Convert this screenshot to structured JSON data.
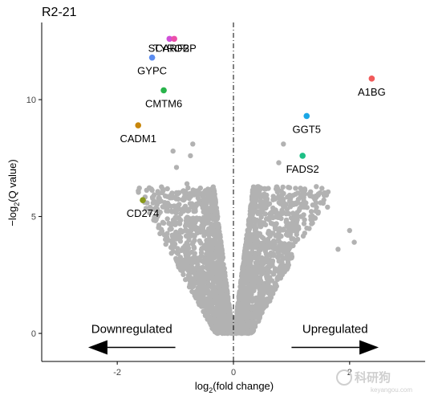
{
  "chart_data": {
    "type": "scatter",
    "title": "R2-21",
    "xlabel": "log2(fold change)",
    "xlabel_parts": {
      "prefix": "log",
      "sub": "2",
      "suffix": "(fold change)"
    },
    "ylabel": "−log2(Q value)",
    "ylabel_parts": {
      "prefix": "−log",
      "sub": "2",
      "suffix": "(Q value)"
    },
    "xlim": [
      -3.3,
      3.3
    ],
    "ylim": [
      -1.2,
      13.3
    ],
    "x_ticks": [
      {
        "value": -2,
        "label": "-2"
      },
      {
        "value": 0,
        "label": "0"
      },
      {
        "value": 2,
        "label": "2"
      }
    ],
    "y_ticks": [
      {
        "value": 0,
        "label": "0"
      },
      {
        "value": 5,
        "label": "5"
      },
      {
        "value": 10,
        "label": "10"
      }
    ],
    "grid": false,
    "vline": {
      "x": 0,
      "style": "dash-dot"
    },
    "background_color": "#b2b2b2",
    "highlighted_genes": [
      {
        "name": "A1BG",
        "x": 2.38,
        "y": 10.9,
        "color": "#f15a5a"
      },
      {
        "name": "GGT5",
        "x": 1.26,
        "y": 9.3,
        "color": "#1aa7e6"
      },
      {
        "name": "FADS2",
        "x": 1.19,
        "y": 7.6,
        "color": "#1dbf85"
      },
      {
        "name": "GYPC",
        "x": -1.4,
        "y": 11.8,
        "color": "#5b8cf0"
      },
      {
        "name": "CMTM6",
        "x": -1.2,
        "y": 10.4,
        "color": "#28b34a"
      },
      {
        "name": "CADM1",
        "x": -1.64,
        "y": 8.9,
        "color": "#c8860a"
      },
      {
        "name": "CD274",
        "x": -1.56,
        "y": 5.7,
        "color": "#8a9a1a"
      },
      {
        "name": "SCARF2",
        "x": -1.1,
        "y": 12.6,
        "color": "#d04fd8"
      },
      {
        "name": "TYROBP",
        "x": -1.02,
        "y": 12.6,
        "color": "#ec4fa9"
      }
    ],
    "background_outliers": [
      {
        "x": -1.04,
        "y": 7.8
      },
      {
        "x": -0.98,
        "y": 7.1
      },
      {
        "x": -0.7,
        "y": 8.1
      },
      {
        "x": -0.74,
        "y": 7.6
      },
      {
        "x": -0.8,
        "y": 6.4
      },
      {
        "x": 0.86,
        "y": 8.1
      },
      {
        "x": 0.78,
        "y": 7.3
      },
      {
        "x": 1.62,
        "y": 5.4
      },
      {
        "x": 2.0,
        "y": 4.4
      },
      {
        "x": 2.08,
        "y": 3.9
      },
      {
        "x": 1.8,
        "y": 3.6
      },
      {
        "x": -0.52,
        "y": 6.0
      },
      {
        "x": 0.6,
        "y": 6.2
      }
    ],
    "annotations": [
      {
        "text": "Downregulated",
        "arrow_from_x": -1.0,
        "arrow_to_x": -2.5,
        "y": -0.6
      },
      {
        "text": "Upregulated",
        "arrow_from_x": 1.0,
        "arrow_to_x": 2.5,
        "y": -0.6
      }
    ]
  },
  "watermark": {
    "main": "科研狗",
    "sub": "keyangou.com"
  }
}
